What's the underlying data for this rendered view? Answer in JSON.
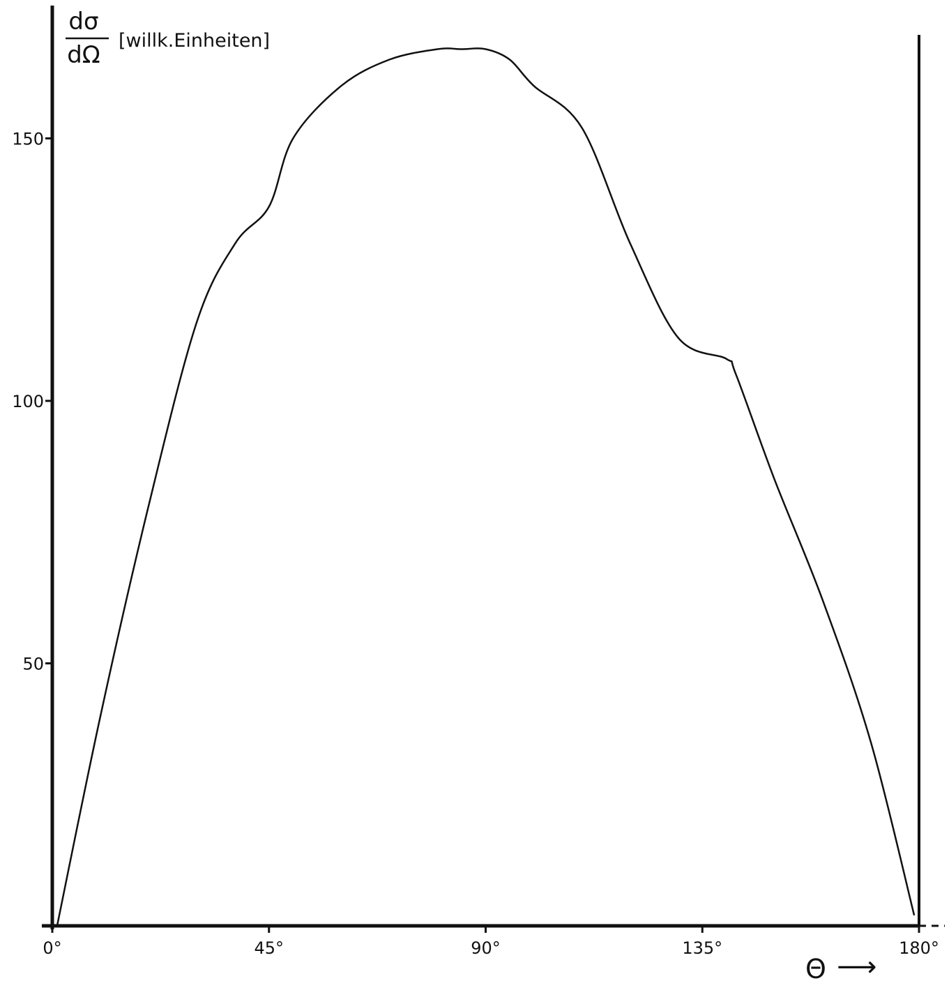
{
  "chart_data": {
    "type": "line",
    "ylabel_numerator": "dσ",
    "ylabel_denominator": "dΩ",
    "ylabel_unit": "[willk.Einheiten]",
    "xlabel": "Θ",
    "xlabel_arrow": "⟶",
    "xlim": [
      0,
      180
    ],
    "ylim": [
      0,
      166
    ],
    "xticks": [
      0,
      45,
      90,
      135,
      180
    ],
    "xtick_labels": [
      "0°",
      "45°",
      "90°",
      "135°",
      "180°"
    ],
    "yticks": [
      50,
      100,
      150
    ],
    "ytick_labels": [
      "50",
      "100",
      "150"
    ],
    "grid": false,
    "series": [
      {
        "x": [
          1,
          10,
          20,
          30,
          38,
          45,
          50,
          60,
          70,
          80,
          85,
          90,
          95,
          100,
          110,
          120,
          130,
          140,
          142,
          150,
          160,
          170,
          179
        ],
        "y": [
          0,
          40,
          80,
          115,
          130,
          137,
          150,
          160,
          165,
          167,
          167,
          167,
          165,
          160,
          152,
          130,
          112,
          108,
          105,
          85,
          62,
          35,
          2
        ],
        "color": "#111111"
      }
    ]
  },
  "colors": {
    "ink": "#111111",
    "background": "#ffffff"
  }
}
